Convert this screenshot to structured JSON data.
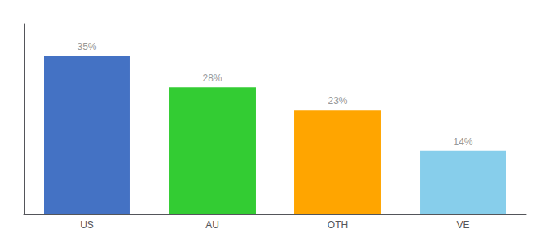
{
  "chart_data": {
    "type": "bar",
    "categories": [
      "US",
      "AU",
      "OTH",
      "VE"
    ],
    "values": [
      35,
      28,
      23,
      14
    ],
    "value_labels": [
      "35%",
      "28%",
      "23%",
      "14%"
    ],
    "data_labels": true,
    "colors": [
      "#4472C4",
      "#33CC33",
      "#FFA500",
      "#87CEEB"
    ],
    "ylim": [
      0,
      42
    ],
    "grid": false,
    "tick_labels": "x"
  }
}
